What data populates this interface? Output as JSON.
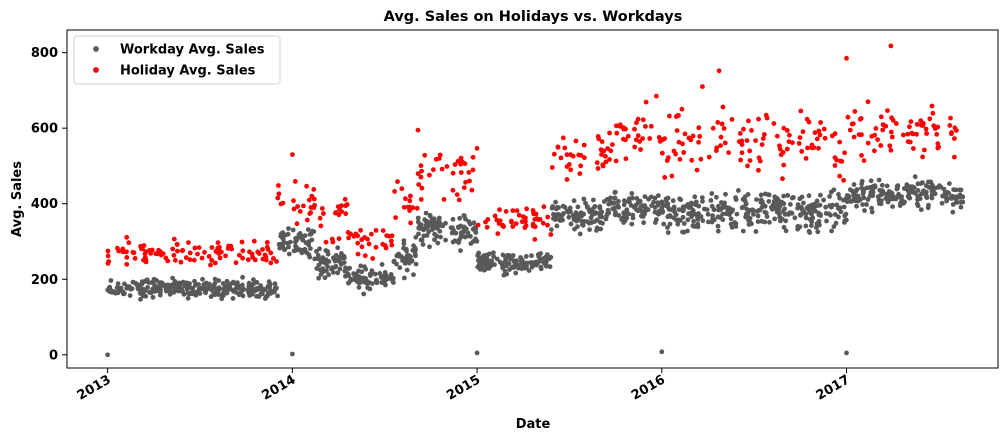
{
  "chart_data": {
    "type": "scatter",
    "title": "Avg. Sales on Holidays vs. Workdays",
    "xlabel": "Date",
    "ylabel": "Avg. Sales",
    "xlim": [
      2012.78,
      2017.82
    ],
    "ylim": [
      -35,
      860
    ],
    "x_ticks": [
      {
        "value": 2013,
        "label": "2013"
      },
      {
        "value": 2014,
        "label": "2014"
      },
      {
        "value": 2015,
        "label": "2015"
      },
      {
        "value": 2016,
        "label": "2016"
      },
      {
        "value": 2017,
        "label": "2017"
      }
    ],
    "y_ticks": [
      {
        "value": 0,
        "label": "0"
      },
      {
        "value": 200,
        "label": "200"
      },
      {
        "value": 400,
        "label": "400"
      },
      {
        "value": 600,
        "label": "600"
      },
      {
        "value": 800,
        "label": "800"
      }
    ],
    "grid": false,
    "legend_position": "top-left",
    "series": [
      {
        "name": "Workday Avg. Sales",
        "color": "#595959",
        "marker": "dot",
        "generated": true,
        "points": [
          [
            2013.0,
            0
          ],
          [
            2014.0,
            2
          ],
          [
            2015.0,
            5
          ],
          [
            2016.0,
            8
          ],
          [
            2017.0,
            5
          ]
        ],
        "segments": [
          {
            "start": 2013.0,
            "end": 2013.92,
            "level": 175,
            "spread": 22,
            "per_year": 300
          },
          {
            "start": 2013.92,
            "end": 2014.12,
            "level": 300,
            "spread": 40,
            "per_year": 300
          },
          {
            "start": 2014.12,
            "end": 2014.3,
            "level": 240,
            "spread": 40,
            "per_year": 300
          },
          {
            "start": 2014.3,
            "end": 2014.55,
            "level": 205,
            "spread": 30,
            "per_year": 300
          },
          {
            "start": 2014.55,
            "end": 2014.68,
            "level": 255,
            "spread": 45,
            "per_year": 300
          },
          {
            "start": 2014.68,
            "end": 2015.0,
            "level": 330,
            "spread": 40,
            "per_year": 300
          },
          {
            "start": 2015.0,
            "end": 2015.4,
            "level": 245,
            "spread": 25,
            "per_year": 300
          },
          {
            "start": 2015.4,
            "end": 2015.7,
            "level": 370,
            "spread": 35,
            "per_year": 300
          },
          {
            "start": 2015.7,
            "end": 2016.0,
            "level": 390,
            "spread": 40,
            "per_year": 300
          },
          {
            "start": 2016.0,
            "end": 2016.5,
            "level": 375,
            "spread": 45,
            "per_year": 300
          },
          {
            "start": 2016.5,
            "end": 2017.0,
            "level": 380,
            "spread": 50,
            "per_year": 300
          },
          {
            "start": 2017.0,
            "end": 2017.63,
            "level": 425,
            "spread": 35,
            "per_year": 300
          }
        ]
      },
      {
        "name": "Holiday Avg. Sales",
        "color": "#ff0000",
        "marker": "dot",
        "generated": true,
        "points": [
          [
            2016.31,
            752
          ],
          [
            2017.24,
            818
          ],
          [
            2017.0,
            785
          ],
          [
            2014.0,
            530
          ],
          [
            2014.68,
            595
          ],
          [
            2015.97,
            685
          ],
          [
            2016.22,
            710
          ]
        ],
        "segments": [
          {
            "start": 2013.0,
            "end": 2013.92,
            "level": 270,
            "spread": 30,
            "per_year": 110
          },
          {
            "start": 2013.92,
            "end": 2014.12,
            "level": 400,
            "spread": 70,
            "per_year": 110
          },
          {
            "start": 2014.12,
            "end": 2014.3,
            "level": 360,
            "spread": 100,
            "per_year": 110
          },
          {
            "start": 2014.3,
            "end": 2014.55,
            "level": 300,
            "spread": 45,
            "per_year": 110
          },
          {
            "start": 2014.55,
            "end": 2014.68,
            "level": 400,
            "spread": 70,
            "per_year": 110
          },
          {
            "start": 2014.68,
            "end": 2015.0,
            "level": 480,
            "spread": 70,
            "per_year": 110
          },
          {
            "start": 2015.0,
            "end": 2015.4,
            "level": 360,
            "spread": 40,
            "per_year": 110
          },
          {
            "start": 2015.4,
            "end": 2015.7,
            "level": 520,
            "spread": 60,
            "per_year": 110
          },
          {
            "start": 2015.7,
            "end": 2016.0,
            "level": 580,
            "spread": 60,
            "per_year": 110
          },
          {
            "start": 2016.0,
            "end": 2016.5,
            "level": 560,
            "spread": 90,
            "per_year": 110
          },
          {
            "start": 2016.5,
            "end": 2017.0,
            "level": 560,
            "spread": 90,
            "per_year": 110
          },
          {
            "start": 2017.0,
            "end": 2017.63,
            "level": 600,
            "spread": 70,
            "per_year": 110
          }
        ]
      }
    ]
  }
}
